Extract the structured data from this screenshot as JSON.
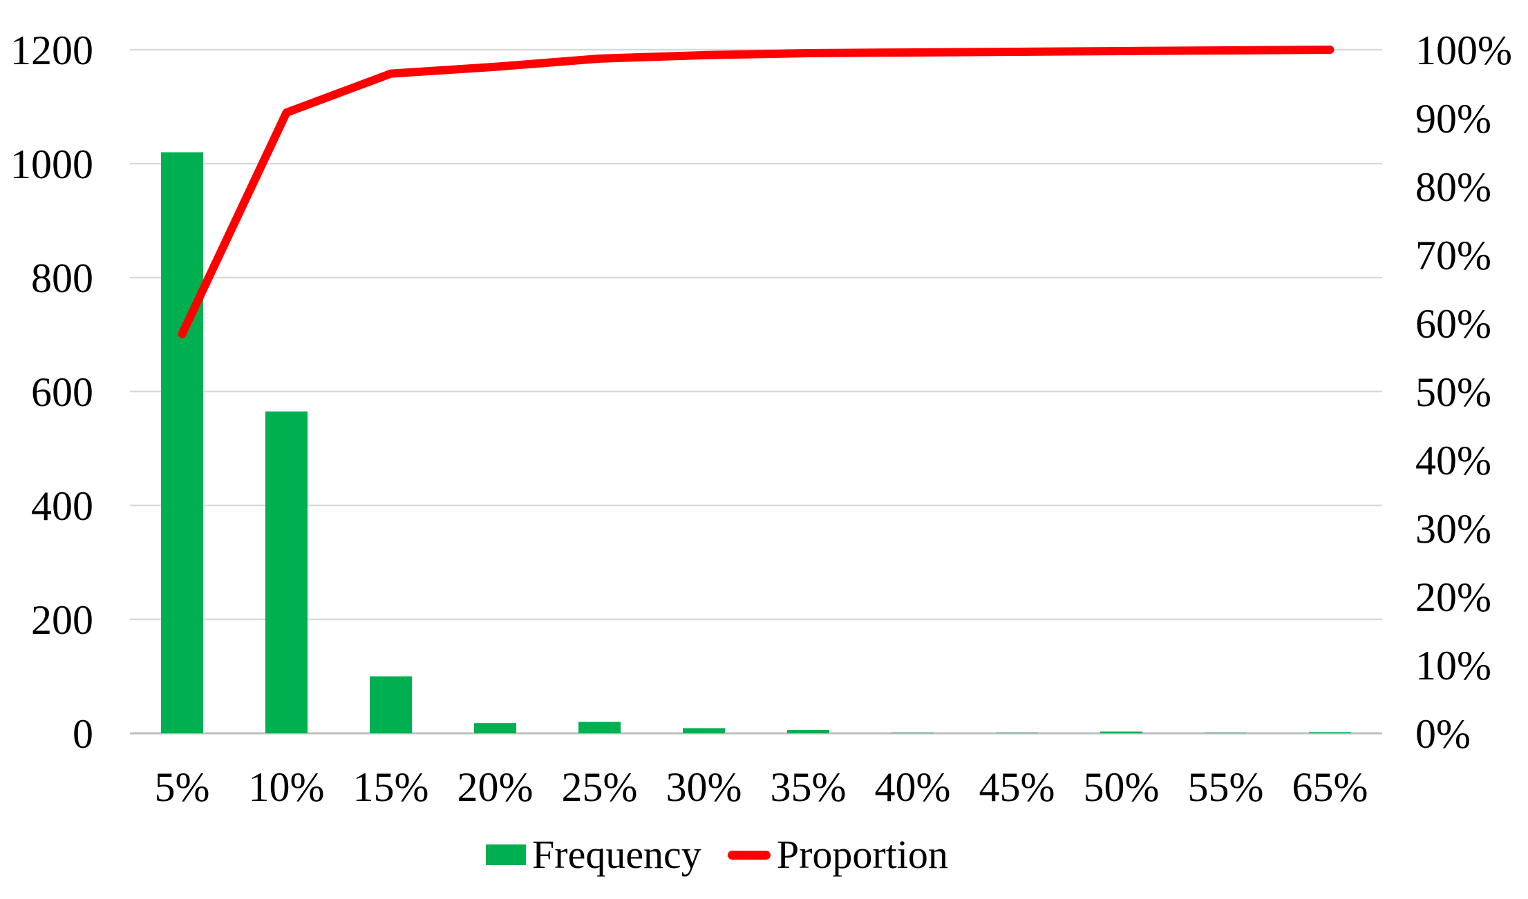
{
  "chart_data": {
    "type": "bar+line (Pareto combo)",
    "title": "",
    "xlabel": "",
    "ylabel": "",
    "categories": [
      "5%",
      "10%",
      "15%",
      "20%",
      "25%",
      "30%",
      "35%",
      "40%",
      "45%",
      "50%",
      "55%",
      "65%"
    ],
    "series": [
      {
        "name": "Frequency",
        "type": "bar",
        "axis": "left",
        "color": "#00B050",
        "values": [
          1020,
          565,
          100,
          18,
          20,
          9,
          6,
          1,
          1,
          3,
          1,
          2
        ]
      },
      {
        "name": "Proportion",
        "type": "line",
        "axis": "right",
        "unit": "%",
        "color": "#FF0000",
        "values": [
          58.4,
          90.8,
          96.5,
          97.5,
          98.7,
          99.2,
          99.5,
          99.6,
          99.7,
          99.8,
          99.9,
          100.0
        ]
      }
    ],
    "left_axis": {
      "min": 0,
      "max": 1200,
      "tick_step": 200,
      "tick_labels": [
        "0",
        "200",
        "400",
        "600",
        "800",
        "1000",
        "1200"
      ]
    },
    "right_axis": {
      "min": 0,
      "max": 100,
      "tick_step": 10,
      "tick_labels": [
        "0%",
        "10%",
        "20%",
        "30%",
        "40%",
        "50%",
        "60%",
        "70%",
        "80%",
        "90%",
        "100%"
      ]
    },
    "grid": {
      "horizontal": true,
      "vertical": false,
      "gridline_color": "#D9D9D9",
      "baseline_color": "#BFBFBF"
    },
    "text_color": "#000000",
    "background_color": "#FFFFFF",
    "legend": {
      "position": "bottom",
      "items": [
        {
          "label": "Frequency",
          "swatch": "bar",
          "color": "#00B050"
        },
        {
          "label": "Proportion",
          "swatch": "line",
          "color": "#FF0000"
        }
      ]
    }
  }
}
